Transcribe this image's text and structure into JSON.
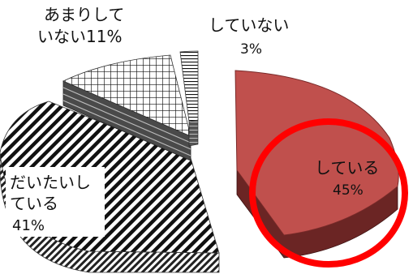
{
  "chart_data": {
    "type": "pie",
    "three_d": true,
    "exploded": true,
    "categories": [
      "している",
      "だいたいしている",
      "あまりしていない",
      "していない"
    ],
    "values": [
      45,
      41,
      11,
      3
    ],
    "slices": [
      {
        "key": "shiteiru",
        "label_lines": [
          "している"
        ],
        "pct_text": "45%",
        "value": 45,
        "fill": "solid",
        "color": "#c0504d",
        "highlighted": true
      },
      {
        "key": "daitai",
        "label_lines": [
          "だいたいし",
          "ている"
        ],
        "pct_text": "41%",
        "value": 41,
        "fill": "diagonal-stripes",
        "color": "#000000"
      },
      {
        "key": "amari",
        "label_lines": [
          "あまりして",
          "いない11%"
        ],
        "pct_text": "",
        "value": 11,
        "fill": "crosshatch",
        "color": "#000000"
      },
      {
        "key": "shiteinai",
        "label_lines": [
          "していない"
        ],
        "pct_text": "3%",
        "value": 3,
        "fill": "horizontal-lines",
        "color": "#000000"
      }
    ],
    "highlight_ring_color": "#ff0000",
    "legend": "none"
  }
}
